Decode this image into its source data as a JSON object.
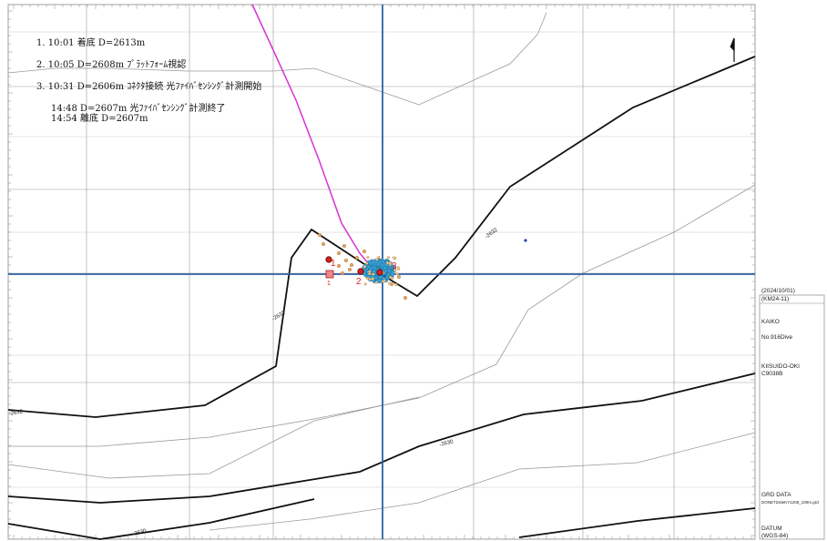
{
  "dive_log": [
    "1. 10:01 着底 D=2613m",
    "2. 10:05 D=2608m ﾌﾟﾗｯﾄﾌｫｰﾑ視認",
    "3. 10:31 D=2606m ｺﾈｸﾀ接続 光ﾌｧｲﾊﾞｾﾝｼﾝｸﾞ計測開始",
    "14:48 D=2607m 光ﾌｧｲﾊﾞｾﾝｼﾝｸﾞ計測終了",
    "14:54 離底 D=2607m"
  ],
  "info_panel": {
    "date": "(2024/10/01)",
    "cruise": "(KM24-11)",
    "vehicle": "KAIKO",
    "dive": "No.916Dive",
    "site": "KIISUIDO-OKI",
    "station": "C9038B",
    "grd_label": "GRD  DATA",
    "grd_file": "DONET2siteKY1206_100m.grd",
    "datum_label": "DATUM",
    "datum_value": "(WGS-84)"
  },
  "contour_labels": [
    "-2632",
    "-2632",
    "-2632",
    "-2630",
    "-2630"
  ],
  "point_labels": [
    "1",
    "2",
    "3",
    "1",
    "2"
  ],
  "colors": {
    "track": "#d633d6",
    "crosshair": "#2e5fa8",
    "contour_major": "#111111",
    "contour_minor": "#999999",
    "cluster": "#2aa3d8",
    "marker_red": "#d62020"
  }
}
